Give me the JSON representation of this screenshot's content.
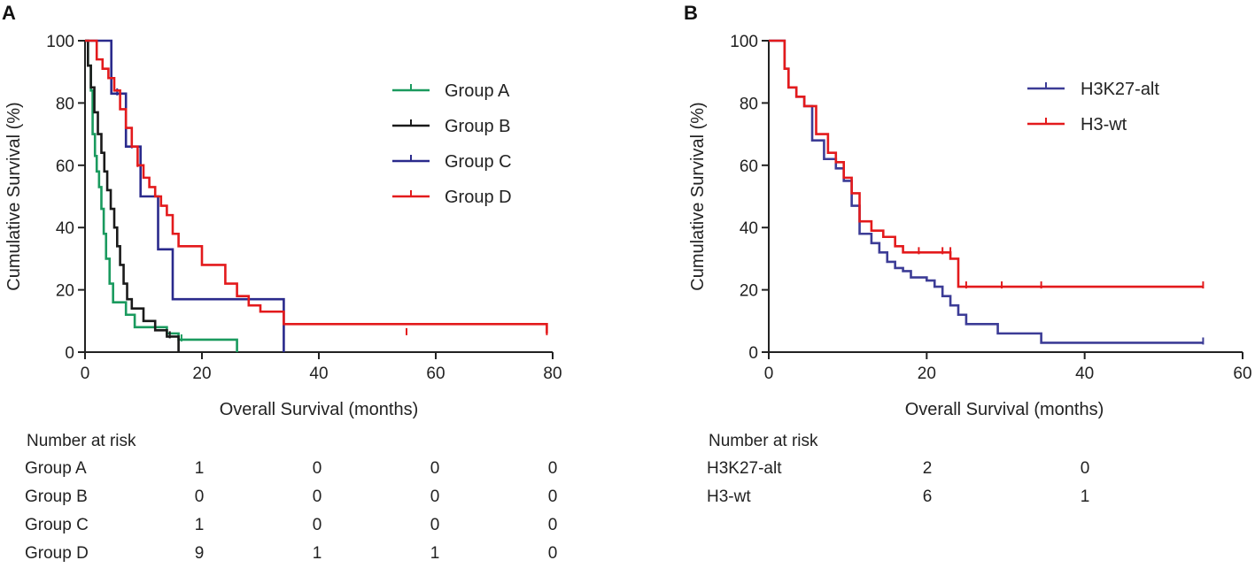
{
  "chart_data": [
    {
      "panel_label": "A",
      "type": "line",
      "subtype": "kaplan-meier-step",
      "title": "",
      "xlabel": "Overall Survival (months)",
      "ylabel": "Cumulative Survival (%)",
      "xlim": [
        0,
        80
      ],
      "ylim": [
        0,
        100
      ],
      "xticks": [
        0,
        20,
        40,
        60,
        80
      ],
      "yticks": [
        0,
        20,
        40,
        60,
        80,
        100
      ],
      "legend_position": "top-right",
      "series": [
        {
          "name": "Group A",
          "color": "#1a9a5e",
          "times": [
            0,
            0.5,
            1,
            1.3,
            1.7,
            2,
            2.4,
            2.8,
            3.2,
            3.6,
            4.2,
            4.8,
            7,
            8.5,
            14,
            16,
            17,
            26
          ],
          "survival": [
            100,
            92,
            84,
            70,
            63,
            58,
            53,
            46,
            38,
            30,
            22,
            16,
            12,
            8,
            6,
            4,
            4,
            0
          ],
          "censor_times": [
            16.5
          ],
          "censor_values": [
            4
          ]
        },
        {
          "name": "Group B",
          "color": "#1a1a1a",
          "times": [
            0,
            0.5,
            1,
            1.6,
            2.2,
            2.8,
            3.3,
            3.8,
            4.4,
            5,
            5.5,
            6,
            6.6,
            7.2,
            8,
            10,
            12,
            14,
            16
          ],
          "survival": [
            100,
            92,
            85,
            77,
            70,
            64,
            58,
            52,
            46,
            40,
            34,
            28,
            22,
            17,
            14,
            10,
            7,
            5,
            0
          ],
          "censor_times": [
            14.5
          ],
          "censor_values": [
            5
          ]
        },
        {
          "name": "Group C",
          "color": "#2a2a8c",
          "times": [
            0,
            4.5,
            7,
            9.5,
            12.5,
            15,
            34
          ],
          "survival": [
            100,
            83,
            66,
            50,
            33,
            17,
            0
          ],
          "censor_times": [
            5.5,
            8
          ],
          "censor_values": [
            83,
            66
          ]
        },
        {
          "name": "Group D",
          "color": "#e31a1c",
          "times": [
            0,
            2,
            3,
            4,
            5,
            6,
            7,
            8,
            9,
            10,
            11,
            12,
            13,
            14,
            15,
            16,
            20,
            24,
            26,
            28,
            30,
            34,
            79
          ],
          "survival": [
            100,
            94,
            91,
            88,
            84,
            78,
            72,
            66,
            60,
            56,
            53,
            50,
            47,
            44,
            38,
            34,
            28,
            22,
            18,
            15,
            13,
            9,
            6
          ],
          "censor_times": [
            9,
            55,
            79
          ],
          "censor_values": [
            60,
            6,
            6
          ]
        }
      ],
      "risk_table": {
        "title": "Number at risk",
        "times": [
          20,
          40,
          60,
          80
        ],
        "rows": [
          {
            "label": "Group A",
            "values": [
              "1",
              "0",
              "0",
              "0"
            ]
          },
          {
            "label": "Group B",
            "values": [
              "0",
              "0",
              "0",
              "0"
            ]
          },
          {
            "label": "Group C",
            "values": [
              "1",
              "0",
              "0",
              "0"
            ]
          },
          {
            "label": "Group D",
            "values": [
              "9",
              "1",
              "1",
              "0"
            ]
          }
        ]
      }
    },
    {
      "panel_label": "B",
      "type": "line",
      "subtype": "kaplan-meier-step",
      "title": "",
      "xlabel": "Overall Survival (months)",
      "ylabel": "Cumulative Survival (%)",
      "xlim": [
        0,
        60
      ],
      "ylim": [
        0,
        100
      ],
      "xticks": [
        0,
        20,
        40,
        60
      ],
      "yticks": [
        0,
        20,
        40,
        60,
        80,
        100
      ],
      "legend_position": "top-right",
      "series": [
        {
          "name": "H3K27-alt",
          "color": "#3c3c96",
          "times": [
            0,
            2,
            2.5,
            3.5,
            4.5,
            5.5,
            7,
            8.5,
            9.5,
            10.5,
            11.5,
            13,
            14,
            15,
            16,
            17,
            18,
            20,
            21,
            22,
            23,
            24,
            25,
            26,
            27,
            29,
            34.5,
            55
          ],
          "survival": [
            100,
            91,
            85,
            82,
            79,
            68,
            62,
            59,
            55,
            47,
            38,
            35,
            32,
            29,
            27,
            26,
            24,
            23,
            21,
            18,
            15,
            12,
            9,
            9,
            9,
            6,
            3,
            3
          ],
          "censor_times": [
            55
          ],
          "censor_values": [
            3
          ]
        },
        {
          "name": "H3-wt",
          "color": "#e31a1c",
          "times": [
            0,
            2,
            2.5,
            3.5,
            4.5,
            6,
            7.5,
            8.5,
            9.5,
            10.5,
            11.5,
            13,
            14.5,
            16,
            17,
            19,
            20,
            22,
            23,
            24,
            55
          ],
          "survival": [
            100,
            91,
            85,
            82,
            79,
            70,
            64,
            61,
            56,
            51,
            42,
            39,
            37,
            34,
            32,
            32,
            32,
            32,
            30,
            21,
            21
          ],
          "censor_times": [
            19,
            22,
            23,
            25,
            29.5,
            34.5,
            55
          ],
          "censor_values": [
            32,
            32,
            32,
            21,
            21,
            21,
            21
          ]
        }
      ],
      "risk_table": {
        "title": "Number at risk",
        "times": [
          20,
          40
        ],
        "rows": [
          {
            "label": "H3K27-alt",
            "values": [
              "2",
              "0"
            ]
          },
          {
            "label": "H3-wt",
            "values": [
              "6",
              "1"
            ]
          }
        ]
      }
    }
  ]
}
